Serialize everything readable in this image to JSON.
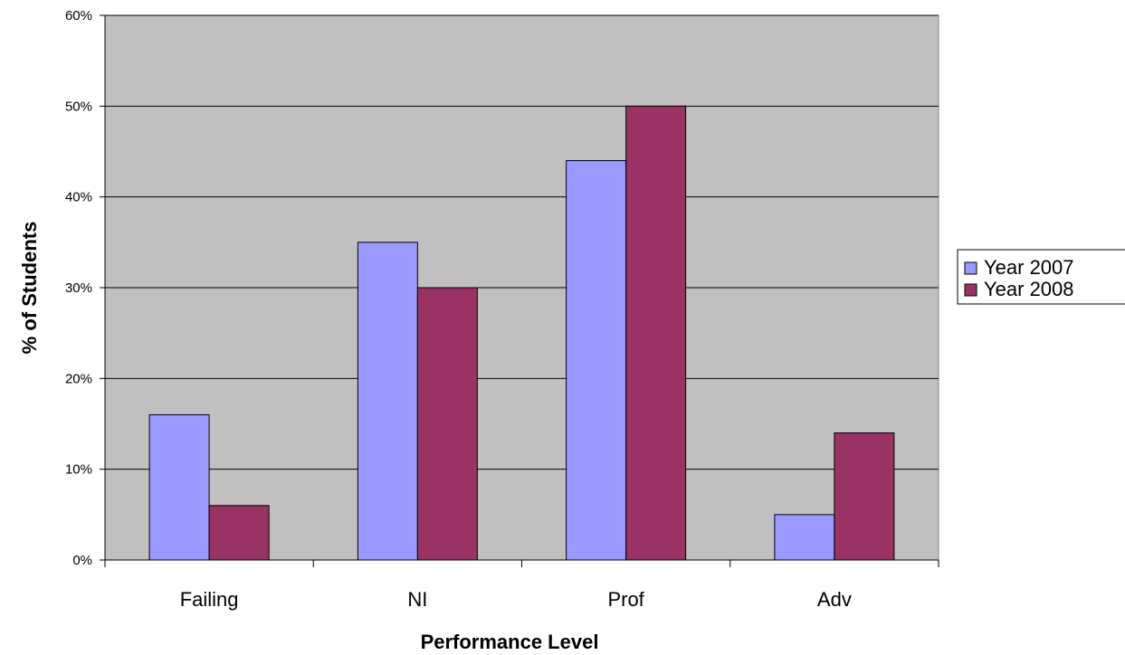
{
  "chart_data": {
    "type": "bar",
    "title": "",
    "xlabel": "Performance Level",
    "ylabel": "% of Students",
    "categories": [
      "Failing",
      "NI",
      "Prof",
      "Adv"
    ],
    "series": [
      {
        "name": "Year 2007",
        "values": [
          16,
          35,
          44,
          5
        ],
        "color": "#9999ff"
      },
      {
        "name": "Year 2008",
        "values": [
          6,
          30,
          50,
          14
        ],
        "color": "#993366"
      }
    ],
    "ylim": [
      0,
      60
    ],
    "yticks": [
      0,
      10,
      20,
      30,
      40,
      50,
      60
    ],
    "ytick_labels": [
      "0%",
      "10%",
      "20%",
      "30%",
      "40%",
      "50%",
      "60%"
    ],
    "grid": true,
    "plot_background": "#c0c0c0",
    "legend_position": "right"
  }
}
